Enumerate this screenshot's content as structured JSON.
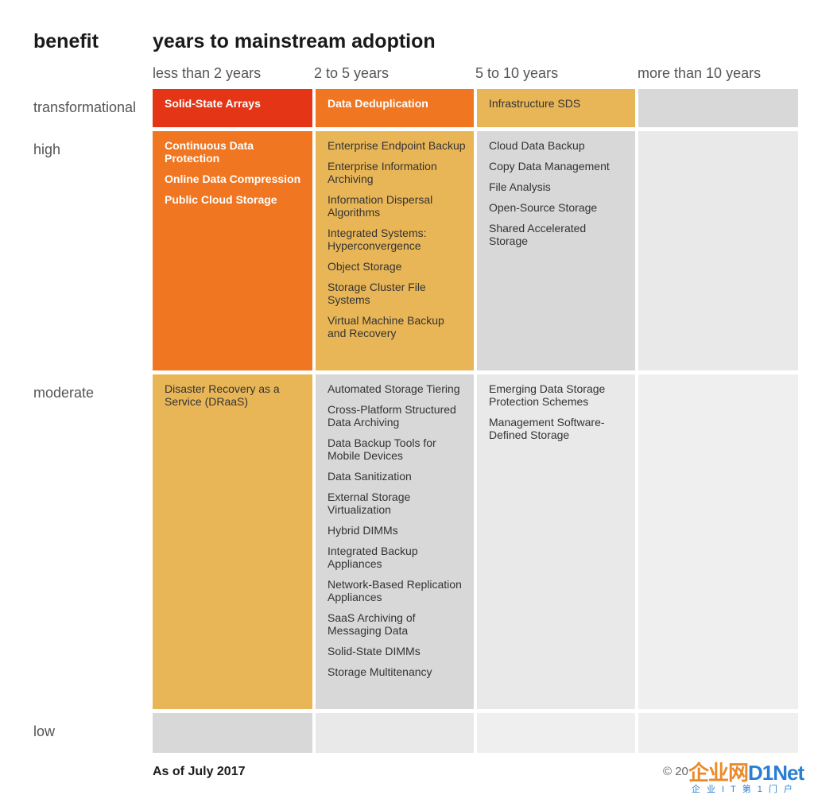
{
  "header": {
    "benefit": "benefit",
    "title": "years to mainstream adoption"
  },
  "columns": [
    "less than 2 years",
    "2 to 5 years",
    "5 to 10 years",
    "more than 10 years"
  ],
  "rows": [
    "transformational",
    "high",
    "moderate",
    "low"
  ],
  "cells": {
    "transformational": [
      {
        "color": "red",
        "bold": true,
        "items": [
          "Solid-State Arrays"
        ]
      },
      {
        "color": "orange",
        "bold": true,
        "items": [
          "Data Deduplication"
        ]
      },
      {
        "color": "yellow",
        "bold": false,
        "items": [
          "Infrastructure SDS"
        ]
      },
      {
        "color": "gray",
        "bold": false,
        "items": []
      }
    ],
    "high": [
      {
        "color": "orange",
        "bold": true,
        "items": [
          "Continuous Data Protection",
          "Online Data Compression",
          "Public Cloud Storage"
        ]
      },
      {
        "color": "yellow",
        "bold": false,
        "items": [
          "Enterprise Endpoint Backup",
          "Enterprise Information Archiving",
          "Information Dispersal Algorithms",
          "Integrated Systems: Hyperconvergence",
          "Object Storage",
          "Storage Cluster File Systems",
          "Virtual Machine Backup and Recovery"
        ]
      },
      {
        "color": "gray",
        "bold": false,
        "items": [
          "Cloud Data Backup",
          "Copy Data Management",
          "File Analysis",
          "Open-Source Storage",
          "Shared Accelerated Storage"
        ]
      },
      {
        "color": "lgray",
        "bold": false,
        "items": []
      }
    ],
    "moderate": [
      {
        "color": "yellow",
        "bold": false,
        "items": [
          "Disaster Recovery as a Service (DRaaS)"
        ]
      },
      {
        "color": "gray",
        "bold": false,
        "items": [
          "Automated Storage Tiering",
          "Cross-Platform Structured Data Archiving",
          "Data Backup Tools for Mobile Devices",
          "Data Sanitization",
          "External Storage Virtualization",
          "Hybrid DIMMs",
          "Integrated Backup Appliances",
          "Network-Based Replication Appliances",
          "SaaS Archiving of Messaging Data",
          "Solid-State DIMMs",
          "Storage Multitenancy"
        ]
      },
      {
        "color": "lgray",
        "bold": false,
        "items": [
          "Emerging Data Storage Protection Schemes",
          "Management Software-Defined Storage"
        ]
      },
      {
        "color": "vlgray",
        "bold": false,
        "items": []
      }
    ],
    "low": [
      {
        "color": "gray",
        "bold": false,
        "items": []
      },
      {
        "color": "lgray",
        "bold": false,
        "items": []
      },
      {
        "color": "vlgray",
        "bold": false,
        "items": []
      },
      {
        "color": "vlgray",
        "bold": false,
        "items": []
      }
    ]
  },
  "colors": {
    "red": "#e53517",
    "orange": "#f07621",
    "yellow": "#e9b657",
    "gray": "#d8d8d8",
    "lgray": "#e9e9e9",
    "vlgray": "#efefef"
  },
  "footer": {
    "date": "As of July 2017",
    "copyright": "© 20"
  },
  "watermark": {
    "logo_main": "企业网",
    "logo_net": "D1Net",
    "sub": "企业IT第1门户"
  }
}
